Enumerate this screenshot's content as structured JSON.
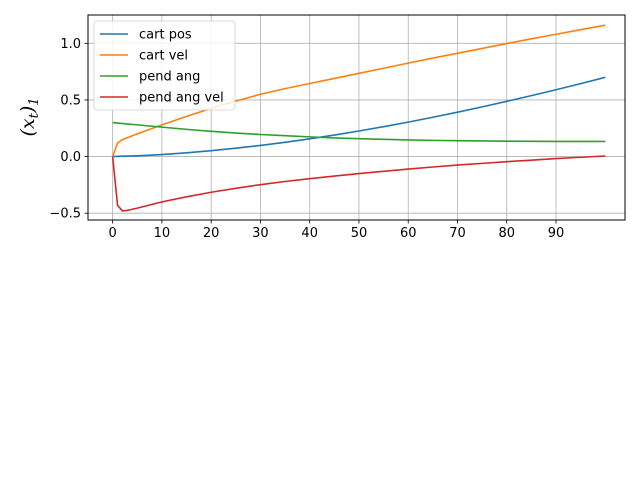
{
  "chart_data": {
    "type": "line",
    "title": "",
    "xlabel": "",
    "ylabel": "(x_t)_1",
    "xlim": [
      -5,
      104
    ],
    "ylim": [
      -0.56,
      1.25
    ],
    "grid": true,
    "legend_position": "top-left",
    "x_ticks": [
      0,
      10,
      20,
      30,
      40,
      50,
      60,
      70,
      80,
      90
    ],
    "x_tick_labels": [
      "0",
      "10",
      "20",
      "30",
      "40",
      "50",
      "60",
      "70",
      "80",
      "90"
    ],
    "y_ticks": [
      -0.5,
      0.0,
      0.5,
      1.0
    ],
    "y_tick_labels": [
      "−0.5",
      "0.0",
      "0.5",
      "1.0"
    ],
    "series": [
      {
        "name": "cart pos",
        "color": "#1f77b4",
        "x": [
          0,
          2,
          5,
          10,
          15,
          20,
          25,
          30,
          35,
          40,
          45,
          50,
          55,
          60,
          65,
          70,
          75,
          80,
          85,
          90,
          95,
          100
        ],
        "y": [
          0.0,
          0.003,
          0.007,
          0.018,
          0.033,
          0.052,
          0.074,
          0.098,
          0.126,
          0.157,
          0.19,
          0.226,
          0.264,
          0.304,
          0.347,
          0.392,
          0.439,
          0.488,
          0.538,
          0.59,
          0.644,
          0.7
        ]
      },
      {
        "name": "cart vel",
        "color": "#ff7f0e",
        "x": [
          0,
          1,
          2,
          5,
          10,
          15,
          20,
          25,
          30,
          35,
          40,
          45,
          50,
          55,
          60,
          65,
          70,
          75,
          80,
          85,
          90,
          95,
          100
        ],
        "y": [
          0.0,
          0.12,
          0.15,
          0.2,
          0.28,
          0.355,
          0.425,
          0.49,
          0.55,
          0.6,
          0.645,
          0.69,
          0.735,
          0.78,
          0.825,
          0.87,
          0.912,
          0.955,
          0.998,
          1.04,
          1.08,
          1.12,
          1.16
        ]
      },
      {
        "name": "pend ang",
        "color": "#2ca02c",
        "x": [
          0,
          5,
          10,
          15,
          20,
          25,
          30,
          35,
          40,
          45,
          50,
          55,
          60,
          65,
          70,
          75,
          80,
          85,
          90,
          95,
          100
        ],
        "y": [
          0.3,
          0.28,
          0.26,
          0.24,
          0.223,
          0.208,
          0.195,
          0.184,
          0.174,
          0.165,
          0.158,
          0.152,
          0.147,
          0.143,
          0.14,
          0.138,
          0.136,
          0.135,
          0.134,
          0.134,
          0.134
        ]
      },
      {
        "name": "pend ang vel",
        "color": "#d62728",
        "x": [
          0,
          1,
          2,
          3,
          5,
          10,
          15,
          20,
          25,
          30,
          35,
          40,
          45,
          50,
          55,
          60,
          65,
          70,
          75,
          80,
          85,
          90,
          95,
          100
        ],
        "y": [
          0.0,
          -0.43,
          -0.48,
          -0.475,
          -0.455,
          -0.4,
          -0.355,
          -0.315,
          -0.28,
          -0.248,
          -0.22,
          -0.195,
          -0.172,
          -0.15,
          -0.13,
          -0.11,
          -0.092,
          -0.075,
          -0.06,
          -0.045,
          -0.032,
          -0.018,
          -0.006,
          0.005
        ]
      }
    ]
  }
}
